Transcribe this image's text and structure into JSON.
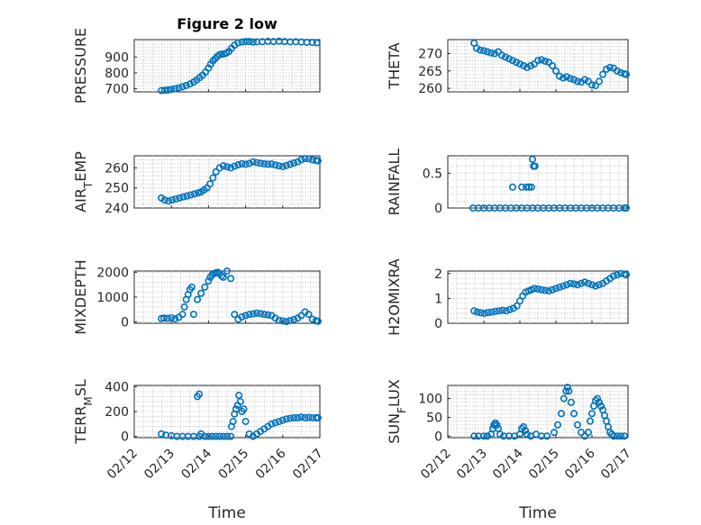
{
  "figure_title": "Figure 2 low",
  "colors": {
    "marker": "#0072bd",
    "axis": "#262626",
    "grid": "#c8c8c8"
  },
  "chart_data": [
    {
      "type": "scatter",
      "ylabel": "PRESSURE",
      "title": "Figure 2 low",
      "xlim": [
        0,
        5
      ],
      "ylim": [
        680,
        1010
      ],
      "yticks": [
        700,
        800,
        900
      ],
      "xticks": [
        0,
        1,
        2,
        3,
        4,
        5
      ],
      "xticklabels": [],
      "xlabel": "",
      "grid": true,
      "x": [
        0.73,
        0.82,
        0.91,
        1.0,
        1.1,
        1.2,
        1.3,
        1.4,
        1.5,
        1.6,
        1.68,
        1.76,
        1.84,
        1.92,
        2.0,
        2.06,
        2.12,
        2.18,
        2.24,
        2.3,
        2.36,
        2.42,
        2.48,
        2.55,
        2.62,
        2.7,
        2.8,
        2.9,
        3.0,
        3.1,
        3.2,
        3.3,
        3.45,
        3.6,
        3.75,
        3.9,
        4.05,
        4.2,
        4.35,
        4.5,
        4.65,
        4.8,
        4.92
      ],
      "y": [
        688,
        690,
        692,
        695,
        700,
        705,
        712,
        720,
        730,
        742,
        755,
        770,
        785,
        805,
        830,
        855,
        875,
        890,
        905,
        915,
        918,
        920,
        925,
        935,
        955,
        975,
        990,
        995,
        998,
        998,
        995,
        996,
        997,
        999,
        998,
        1000,
        998,
        996,
        997,
        995,
        993,
        992,
        990
      ]
    },
    {
      "type": "scatter",
      "ylabel": "THETA",
      "xlim": [
        0,
        5
      ],
      "ylim": [
        259,
        274
      ],
      "yticks": [
        260,
        265,
        270
      ],
      "xticks": [
        0,
        1,
        2,
        3,
        4,
        5
      ],
      "xticklabels": [],
      "xlabel": "",
      "grid": true,
      "x": [
        0.73,
        0.8,
        0.9,
        1.0,
        1.1,
        1.2,
        1.3,
        1.4,
        1.5,
        1.6,
        1.7,
        1.8,
        1.9,
        2.0,
        2.1,
        2.2,
        2.3,
        2.4,
        2.5,
        2.6,
        2.7,
        2.8,
        2.9,
        3.0,
        3.1,
        3.2,
        3.3,
        3.4,
        3.5,
        3.6,
        3.7,
        3.8,
        3.9,
        4.0,
        4.1,
        4.2,
        4.3,
        4.4,
        4.5,
        4.6,
        4.7,
        4.8,
        4.9,
        4.95
      ],
      "y": [
        273,
        271.5,
        271,
        270.8,
        270.5,
        270.2,
        270,
        270.5,
        269.5,
        269,
        268.5,
        268,
        267.5,
        267,
        266.5,
        266,
        266.5,
        267,
        268,
        268.2,
        267.8,
        267.5,
        266.5,
        265,
        263.5,
        263,
        263.3,
        262.8,
        262.5,
        262,
        261.8,
        262.5,
        262,
        261,
        260.8,
        262,
        264,
        265.5,
        266,
        265.8,
        265,
        264.5,
        264.2,
        264
      ]
    },
    {
      "type": "scatter",
      "ylabel": "AIR_TEMP",
      "xlim": [
        0,
        5
      ],
      "ylim": [
        240,
        266
      ],
      "yticks": [
        240,
        250,
        260
      ],
      "xticks": [
        0,
        1,
        2,
        3,
        4,
        5
      ],
      "xticklabels": [],
      "xlabel": "",
      "grid": true,
      "x": [
        0.73,
        0.82,
        0.92,
        1.02,
        1.12,
        1.22,
        1.32,
        1.42,
        1.52,
        1.62,
        1.72,
        1.8,
        1.88,
        1.96,
        2.04,
        2.12,
        2.2,
        2.3,
        2.4,
        2.5,
        2.6,
        2.7,
        2.8,
        2.9,
        3.0,
        3.1,
        3.2,
        3.3,
        3.4,
        3.5,
        3.6,
        3.7,
        3.8,
        3.9,
        4.0,
        4.1,
        4.2,
        4.3,
        4.4,
        4.5,
        4.6,
        4.7,
        4.8,
        4.9,
        4.95
      ],
      "y": [
        245,
        244,
        243.5,
        244,
        244.5,
        245,
        245.5,
        246,
        246.5,
        247,
        247.5,
        248,
        249,
        250,
        252,
        255,
        258,
        260,
        261,
        260.5,
        260,
        260.8,
        261.5,
        262,
        261.8,
        262.2,
        263,
        262.6,
        262.3,
        262,
        261.8,
        261.9,
        261.4,
        261,
        260.6,
        261.2,
        261.8,
        262.4,
        263,
        264,
        264.6,
        264.5,
        264,
        263.7,
        263.5
      ]
    },
    {
      "type": "scatter",
      "ylabel": "RAINFALL",
      "xlim": [
        0,
        5
      ],
      "ylim": [
        0,
        0.75
      ],
      "yticks": [
        0,
        0.5
      ],
      "yticklabels": [
        "0",
        "0.5"
      ],
      "xticks": [
        0,
        1,
        2,
        3,
        4,
        5
      ],
      "xticklabels": [],
      "xlabel": "",
      "grid": true,
      "x": [
        0.7,
        0.85,
        1.0,
        1.15,
        1.3,
        1.45,
        1.6,
        1.75,
        1.9,
        2.05,
        2.2,
        2.35,
        2.5,
        2.65,
        2.8,
        2.95,
        3.1,
        3.25,
        3.4,
        3.55,
        3.7,
        3.85,
        4.0,
        4.15,
        4.3,
        4.45,
        4.6,
        4.75,
        4.9,
        4.95,
        1.8,
        2.05,
        2.18,
        2.25,
        2.32,
        2.35,
        2.38,
        2.42
      ],
      "y": [
        0,
        0,
        0,
        0,
        0,
        0,
        0,
        0,
        0,
        0,
        0,
        0,
        0,
        0,
        0,
        0,
        0,
        0,
        0,
        0,
        0,
        0,
        0,
        0,
        0,
        0,
        0,
        0,
        0,
        0,
        0.3,
        0.3,
        0.3,
        0.3,
        0.3,
        0.7,
        0.6,
        0.6
      ]
    },
    {
      "type": "scatter",
      "ylabel": "MIXDEPTH",
      "xlim": [
        0,
        5
      ],
      "ylim": [
        -60,
        2050
      ],
      "yticks": [
        0,
        1000,
        2000
      ],
      "xticks": [
        0,
        1,
        2,
        3,
        4,
        5
      ],
      "xticklabels": [],
      "xlabel": "",
      "grid": true,
      "x": [
        0.73,
        0.8,
        0.9,
        1.0,
        1.1,
        1.2,
        1.3,
        1.35,
        1.4,
        1.45,
        1.5,
        1.55,
        1.6,
        1.7,
        1.8,
        1.9,
        2.0,
        2.05,
        2.1,
        2.15,
        2.2,
        2.25,
        2.3,
        2.35,
        2.4,
        2.5,
        2.6,
        2.7,
        2.8,
        2.9,
        3.0,
        3.1,
        3.2,
        3.3,
        3.4,
        3.5,
        3.6,
        3.7,
        3.8,
        3.9,
        4.0,
        4.1,
        4.2,
        4.3,
        4.4,
        4.5,
        4.6,
        4.7,
        4.8,
        4.9,
        4.95
      ],
      "y": [
        130,
        150,
        140,
        160,
        120,
        180,
        300,
        600,
        900,
        1100,
        1300,
        1400,
        300,
        900,
        1150,
        1400,
        1650,
        1800,
        1900,
        1950,
        1980,
        2000,
        1950,
        1850,
        1800,
        2050,
        1750,
        300,
        100,
        200,
        250,
        300,
        320,
        350,
        330,
        300,
        280,
        250,
        150,
        60,
        30,
        10,
        50,
        90,
        150,
        250,
        400,
        300,
        100,
        40,
        20
      ]
    },
    {
      "type": "scatter",
      "ylabel": "H2OMIXRA",
      "xlim": [
        0,
        5
      ],
      "ylim": [
        0,
        2.1
      ],
      "yticks": [
        0,
        1,
        2
      ],
      "xticks": [
        0,
        1,
        2,
        3,
        4,
        5
      ],
      "xticklabels": [],
      "xlabel": "",
      "grid": true,
      "x": [
        0.73,
        0.82,
        0.92,
        1.02,
        1.12,
        1.22,
        1.32,
        1.42,
        1.52,
        1.62,
        1.72,
        1.82,
        1.92,
        2.0,
        2.08,
        2.16,
        2.24,
        2.32,
        2.4,
        2.5,
        2.6,
        2.7,
        2.8,
        2.9,
        3.0,
        3.1,
        3.2,
        3.3,
        3.4,
        3.5,
        3.6,
        3.7,
        3.8,
        3.9,
        4.0,
        4.1,
        4.2,
        4.3,
        4.4,
        4.5,
        4.6,
        4.7,
        4.8,
        4.9,
        4.95
      ],
      "y": [
        0.5,
        0.45,
        0.42,
        0.4,
        0.43,
        0.45,
        0.48,
        0.5,
        0.52,
        0.5,
        0.55,
        0.6,
        0.7,
        0.9,
        1.1,
        1.25,
        1.3,
        1.35,
        1.4,
        1.38,
        1.35,
        1.32,
        1.3,
        1.35,
        1.4,
        1.45,
        1.5,
        1.55,
        1.6,
        1.58,
        1.55,
        1.6,
        1.65,
        1.6,
        1.55,
        1.5,
        1.55,
        1.6,
        1.7,
        1.8,
        1.9,
        1.95,
        2.0,
        1.98,
        1.95
      ]
    },
    {
      "type": "scatter",
      "ylabel": "TERR_MSL",
      "xlim": [
        0,
        5
      ],
      "ylim": [
        -10,
        410
      ],
      "yticks": [
        0,
        200,
        400
      ],
      "xticks": [
        0,
        1,
        2,
        3,
        4,
        5
      ],
      "xticklabels": [
        "02/12",
        "02/13",
        "02/14",
        "02/15",
        "02/16",
        "02/17"
      ],
      "xlabel": "Time",
      "grid": true,
      "x": [
        0.73,
        0.85,
        1.0,
        1.15,
        1.3,
        1.45,
        1.6,
        1.75,
        1.8,
        1.9,
        2.0,
        2.1,
        2.2,
        2.3,
        2.4,
        2.5,
        2.6,
        2.62,
        2.66,
        2.7,
        2.74,
        2.78,
        2.82,
        2.86,
        2.9,
        2.95,
        3.0,
        3.1,
        3.2,
        3.3,
        3.4,
        3.5,
        3.6,
        3.7,
        3.8,
        3.9,
        4.0,
        4.1,
        4.2,
        4.3,
        4.4,
        4.5,
        4.6,
        4.7,
        4.8,
        4.9,
        4.95,
        1.7,
        1.75
      ],
      "y": [
        20,
        10,
        5,
        0,
        0,
        0,
        0,
        0,
        20,
        0,
        0,
        0,
        0,
        0,
        0,
        0,
        0,
        80,
        120,
        180,
        220,
        250,
        330,
        280,
        200,
        220,
        120,
        20,
        0,
        20,
        40,
        60,
        80,
        100,
        110,
        120,
        130,
        140,
        145,
        150,
        150,
        155,
        150,
        152,
        150,
        150,
        150,
        320,
        340
      ]
    },
    {
      "type": "scatter",
      "ylabel": "SUN_FLUX",
      "xlim": [
        0,
        5
      ],
      "ylim": [
        -4,
        135
      ],
      "yticks": [
        0,
        50,
        100
      ],
      "xticks": [
        0,
        1,
        2,
        3,
        4,
        5
      ],
      "xticklabels": [
        "02/12",
        "02/13",
        "02/14",
        "02/15",
        "02/16",
        "02/17"
      ],
      "xlabel": "Time",
      "grid": true,
      "x": [
        0.73,
        0.85,
        1.0,
        1.1,
        1.2,
        1.25,
        1.28,
        1.32,
        1.36,
        1.4,
        1.45,
        1.55,
        1.7,
        1.85,
        2.0,
        2.05,
        2.1,
        2.15,
        2.2,
        2.3,
        2.45,
        2.6,
        2.75,
        2.95,
        3.05,
        3.15,
        3.22,
        3.28,
        3.32,
        3.36,
        3.42,
        3.5,
        3.6,
        3.7,
        3.8,
        3.9,
        3.95,
        4.0,
        4.05,
        4.1,
        4.15,
        4.2,
        4.25,
        4.3,
        4.35,
        4.4,
        4.45,
        4.5,
        4.55,
        4.6,
        4.7,
        4.8,
        4.9
      ],
      "y": [
        0,
        0,
        0,
        0,
        5,
        20,
        30,
        35,
        30,
        20,
        5,
        0,
        0,
        0,
        5,
        20,
        25,
        15,
        5,
        0,
        5,
        0,
        0,
        10,
        30,
        60,
        100,
        120,
        130,
        120,
        90,
        60,
        30,
        10,
        0,
        10,
        40,
        60,
        80,
        95,
        100,
        90,
        80,
        70,
        55,
        40,
        25,
        10,
        5,
        0,
        0,
        0,
        0
      ]
    }
  ]
}
